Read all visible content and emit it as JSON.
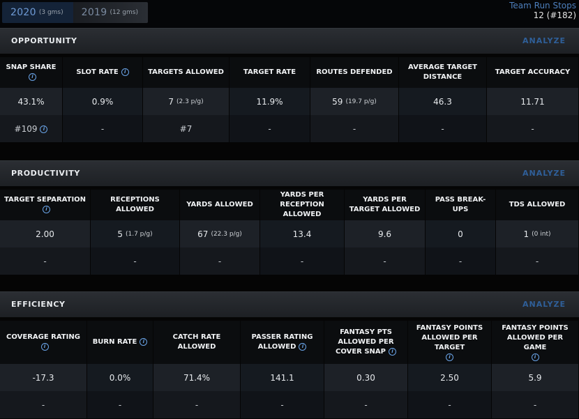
{
  "seasons": [
    {
      "year": "2020",
      "games": "(3 gms)",
      "active": true
    },
    {
      "year": "2019",
      "games": "(12 gms)",
      "active": false
    }
  ],
  "team_run_stops": {
    "label": "Team Run Stops",
    "value": "12 (#182)"
  },
  "analyze_label": "ANALYZE",
  "info_glyph": "i",
  "sections": {
    "opportunity": {
      "title": "OPPORTUNITY",
      "headers": [
        "SNAP SHARE",
        "SLOT RATE",
        "TARGETS ALLOWED",
        "TARGET RATE",
        "ROUTES DEFENDED",
        "AVERAGE TARGET DISTANCE",
        "TARGET ACCURACY"
      ],
      "values": [
        "43.1%",
        "0.9%",
        "7",
        "11.9%",
        "59",
        "46.3",
        "11.71"
      ],
      "per_game": {
        "targets": "(2.3 p/g)",
        "routes": "(19.7 p/g)"
      },
      "ranks": [
        "#109",
        "-",
        "#7",
        "-",
        "-",
        "-",
        "-"
      ]
    },
    "productivity": {
      "title": "PRODUCTIVITY",
      "headers": [
        "TARGET SEPARATION",
        "RECEPTIONS ALLOWED",
        "YARDS ALLOWED",
        "YARDS PER RECEPTION ALLOWED",
        "YARDS PER TARGET ALLOWED",
        "PASS BREAK-UPS",
        "TDS ALLOWED"
      ],
      "values": [
        "2.00",
        "5",
        "67",
        "13.4",
        "9.6",
        "0",
        "1"
      ],
      "per_game": {
        "receptions": "(1.7 p/g)",
        "yards": "(22.3 p/g)",
        "tds": "(0 int)"
      },
      "ranks": [
        "-",
        "-",
        "-",
        "-",
        "-",
        "-",
        "-"
      ]
    },
    "efficiency": {
      "title": "EFFICIENCY",
      "headers": [
        "COVERAGE RATING",
        "BURN RATE",
        "CATCH RATE ALLOWED",
        "PASSER RATING ALLOWED",
        "FANTASY PTS ALLOWED PER COVER SNAP",
        "FANTASY POINTS ALLOWED PER TARGET",
        "FANTASY POINTS ALLOWED PER GAME"
      ],
      "values": [
        "-17.3",
        "0.0%",
        "71.4%",
        "141.1",
        "0.30",
        "2.50",
        "5.9"
      ],
      "ranks": [
        "-",
        "-",
        "-",
        "-",
        "-",
        "-",
        "-"
      ]
    }
  },
  "colors": {
    "accent": "#6f9bd6",
    "analyze": "#2f5f99",
    "info": "#6aa4e8"
  }
}
